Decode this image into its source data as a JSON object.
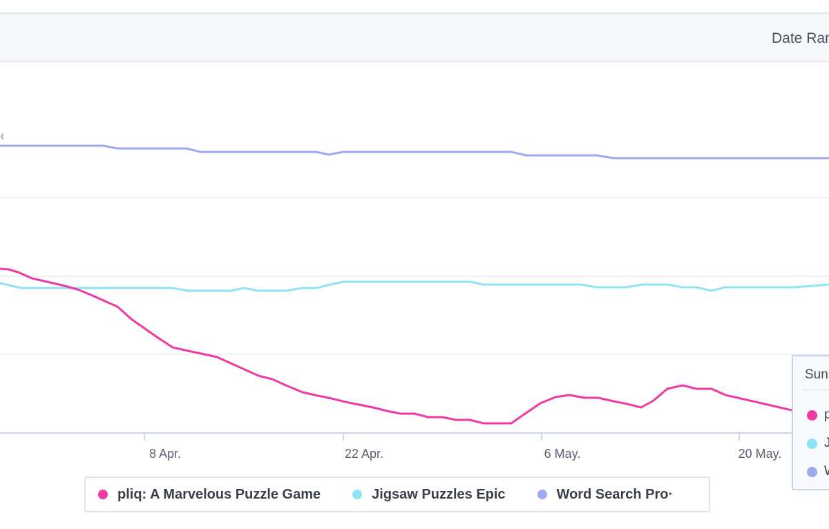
{
  "header": {
    "date_range_label": "Date Range"
  },
  "colors": {
    "pliq": "#ee3aa2",
    "jigsaw": "#8fe3f4",
    "wordsearch": "#9daaf0",
    "grid": "#e8ebf0",
    "axis": "#ccd6eb"
  },
  "chart_data": {
    "type": "line",
    "x_tick_labels": [
      "8 Apr.",
      "22 Apr.",
      "6 May.",
      "20 May."
    ],
    "grid": true,
    "legend_position": "bottom",
    "series": [
      {
        "name": "pliq: A Marvelous Puzzle Game",
        "color": "#ee3aa2",
        "points": [
          [
            0,
            389
          ],
          [
            12,
            390
          ],
          [
            26,
            394
          ],
          [
            46,
            403
          ],
          [
            68,
            408
          ],
          [
            90,
            413
          ],
          [
            112,
            419
          ],
          [
            134,
            428
          ],
          [
            154,
            437
          ],
          [
            170,
            444
          ],
          [
            190,
            462
          ],
          [
            210,
            476
          ],
          [
            230,
            490
          ],
          [
            250,
            503
          ],
          [
            272,
            508
          ],
          [
            296,
            513
          ],
          [
            314,
            517
          ],
          [
            334,
            526
          ],
          [
            354,
            535
          ],
          [
            374,
            544
          ],
          [
            394,
            549
          ],
          [
            414,
            558
          ],
          [
            438,
            568
          ],
          [
            460,
            573
          ],
          [
            480,
            577
          ],
          [
            500,
            582
          ],
          [
            520,
            586
          ],
          [
            540,
            590
          ],
          [
            560,
            595
          ],
          [
            580,
            599
          ],
          [
            600,
            599
          ],
          [
            620,
            604
          ],
          [
            640,
            604
          ],
          [
            660,
            608
          ],
          [
            680,
            608
          ],
          [
            700,
            613
          ],
          [
            720,
            613
          ],
          [
            740,
            613
          ],
          [
            760,
            599
          ],
          [
            782,
            584
          ],
          [
            804,
            575
          ],
          [
            824,
            572
          ],
          [
            846,
            576
          ],
          [
            866,
            576
          ],
          [
            888,
            581
          ],
          [
            908,
            585
          ],
          [
            928,
            590
          ],
          [
            946,
            580
          ],
          [
            966,
            563
          ],
          [
            988,
            558
          ],
          [
            1008,
            563
          ],
          [
            1030,
            563
          ],
          [
            1050,
            572
          ],
          [
            1072,
            577
          ],
          [
            1094,
            582
          ],
          [
            1116,
            587
          ],
          [
            1146,
            594
          ]
        ]
      },
      {
        "name": "Jigsaw Puzzles Epic",
        "color": "#8fe3f4",
        "points": [
          [
            0,
            410
          ],
          [
            30,
            417
          ],
          [
            60,
            417
          ],
          [
            90,
            417
          ],
          [
            130,
            417
          ],
          [
            170,
            417
          ],
          [
            210,
            417
          ],
          [
            250,
            417
          ],
          [
            272,
            421
          ],
          [
            300,
            421
          ],
          [
            334,
            421
          ],
          [
            354,
            417
          ],
          [
            374,
            421
          ],
          [
            414,
            421
          ],
          [
            438,
            417
          ],
          [
            458,
            417
          ],
          [
            478,
            412
          ],
          [
            498,
            408
          ],
          [
            540,
            408
          ],
          [
            580,
            408
          ],
          [
            620,
            408
          ],
          [
            660,
            408
          ],
          [
            680,
            408
          ],
          [
            700,
            412
          ],
          [
            740,
            412
          ],
          [
            780,
            412
          ],
          [
            840,
            412
          ],
          [
            864,
            416
          ],
          [
            906,
            416
          ],
          [
            930,
            412
          ],
          [
            966,
            412
          ],
          [
            988,
            416
          ],
          [
            1008,
            416
          ],
          [
            1030,
            421
          ],
          [
            1050,
            416
          ],
          [
            1100,
            416
          ],
          [
            1150,
            416
          ],
          [
            1200,
            412
          ]
        ]
      },
      {
        "name": "Word Search Pro",
        "color": "#9daaf0",
        "points": [
          [
            0,
            211
          ],
          [
            40,
            211
          ],
          [
            80,
            211
          ],
          [
            120,
            211
          ],
          [
            150,
            211
          ],
          [
            170,
            215
          ],
          [
            210,
            215
          ],
          [
            250,
            215
          ],
          [
            270,
            215
          ],
          [
            290,
            220
          ],
          [
            330,
            220
          ],
          [
            380,
            220
          ],
          [
            420,
            220
          ],
          [
            458,
            220
          ],
          [
            476,
            224
          ],
          [
            496,
            220
          ],
          [
            540,
            220
          ],
          [
            600,
            220
          ],
          [
            660,
            220
          ],
          [
            700,
            220
          ],
          [
            740,
            220
          ],
          [
            762,
            225
          ],
          [
            800,
            225
          ],
          [
            864,
            225
          ],
          [
            888,
            229
          ],
          [
            940,
            229
          ],
          [
            1000,
            229
          ],
          [
            1100,
            229
          ],
          [
            1200,
            229
          ]
        ]
      }
    ]
  },
  "legend": {
    "items": [
      {
        "label": "pliq: A Marvelous Puzzle Game",
        "color": "#ee3aa2"
      },
      {
        "label": "Jigsaw Puzzles Epic",
        "color": "#8fe3f4"
      },
      {
        "label": "Word Search Pro·",
        "color": "#9daaf0"
      }
    ]
  },
  "tooltip": {
    "title": "Sun",
    "rows": [
      {
        "label": "p",
        "color": "#ee3aa2"
      },
      {
        "label": "Ji",
        "color": "#8fe3f4"
      },
      {
        "label": "W",
        "color": "#9daaf0"
      }
    ]
  }
}
